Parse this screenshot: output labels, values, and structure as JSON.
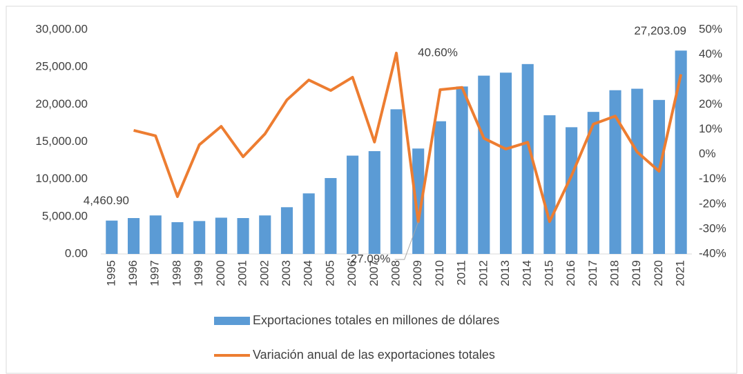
{
  "chart_data": {
    "type": "bar_line",
    "categories": [
      "1995",
      "1996",
      "1997",
      "1998",
      "1999",
      "2000",
      "2001",
      "2002",
      "2003",
      "2004",
      "2005",
      "2006",
      "2007",
      "2008",
      "2009",
      "2010",
      "2011",
      "2012",
      "2013",
      "2014",
      "2015",
      "2016",
      "2017",
      "2018",
      "2019",
      "2020",
      "2021"
    ],
    "series": [
      {
        "name": "Exportaciones totales en millones de dólares",
        "type": "bar",
        "color": "#5b9bd5",
        "values": [
          4460.9,
          4800,
          5150,
          4250,
          4400,
          4850,
          4800,
          5150,
          6250,
          8100,
          10150,
          13150,
          13750,
          19350,
          14100,
          17750,
          22400,
          23850,
          24250,
          25400,
          18550,
          16950,
          19000,
          21900,
          22100,
          20600,
          27203.09
        ],
        "value_labels": [
          "4,460.90",
          null,
          null,
          null,
          null,
          null,
          null,
          null,
          null,
          null,
          null,
          null,
          null,
          null,
          null,
          null,
          null,
          null,
          null,
          null,
          null,
          null,
          null,
          null,
          null,
          null,
          "27,203.09"
        ]
      },
      {
        "name": "Variación anual de las exportaciones totales",
        "type": "line",
        "color": "#ed7d31",
        "axis": "y2",
        "values": [
          null,
          9.6,
          7.4,
          -17,
          3.8,
          11.2,
          -1,
          8.2,
          21.8,
          29.8,
          25.6,
          30.9,
          4.9,
          40.6,
          -27.09,
          25.9,
          26.8,
          6.4,
          2.1,
          4.8,
          -27,
          -8.6,
          12.1,
          15.3,
          0.9,
          -6.8,
          32.1
        ],
        "value_labels": [
          null,
          null,
          null,
          null,
          null,
          null,
          null,
          null,
          null,
          null,
          null,
          null,
          null,
          "40.60%",
          "-27.09%",
          null,
          null,
          null,
          null,
          null,
          null,
          null,
          null,
          null,
          null,
          null,
          null
        ]
      }
    ],
    "ylim": [
      0,
      30000
    ],
    "yticks": [
      {
        "value": 0,
        "label": "0.00"
      },
      {
        "value": 5000,
        "label": "5,000.00"
      },
      {
        "value": 10000,
        "label": "10,000.00"
      },
      {
        "value": 15000,
        "label": "15,000.00"
      },
      {
        "value": 20000,
        "label": "20,000.00"
      },
      {
        "value": 25000,
        "label": "25,000.00"
      },
      {
        "value": 30000,
        "label": "30,000.00"
      }
    ],
    "y2lim": [
      -40,
      50
    ],
    "y2ticks": [
      {
        "value": -40,
        "label": "-40%"
      },
      {
        "value": -30,
        "label": "-30%"
      },
      {
        "value": -20,
        "label": "-20%"
      },
      {
        "value": -10,
        "label": "-10%"
      },
      {
        "value": 0,
        "label": "0%"
      },
      {
        "value": 10,
        "label": "10%"
      },
      {
        "value": 20,
        "label": "20%"
      },
      {
        "value": 30,
        "label": "30%"
      },
      {
        "value": 40,
        "label": "40%"
      },
      {
        "value": 50,
        "label": "50%"
      }
    ],
    "grid": false,
    "legend": "bottom"
  }
}
